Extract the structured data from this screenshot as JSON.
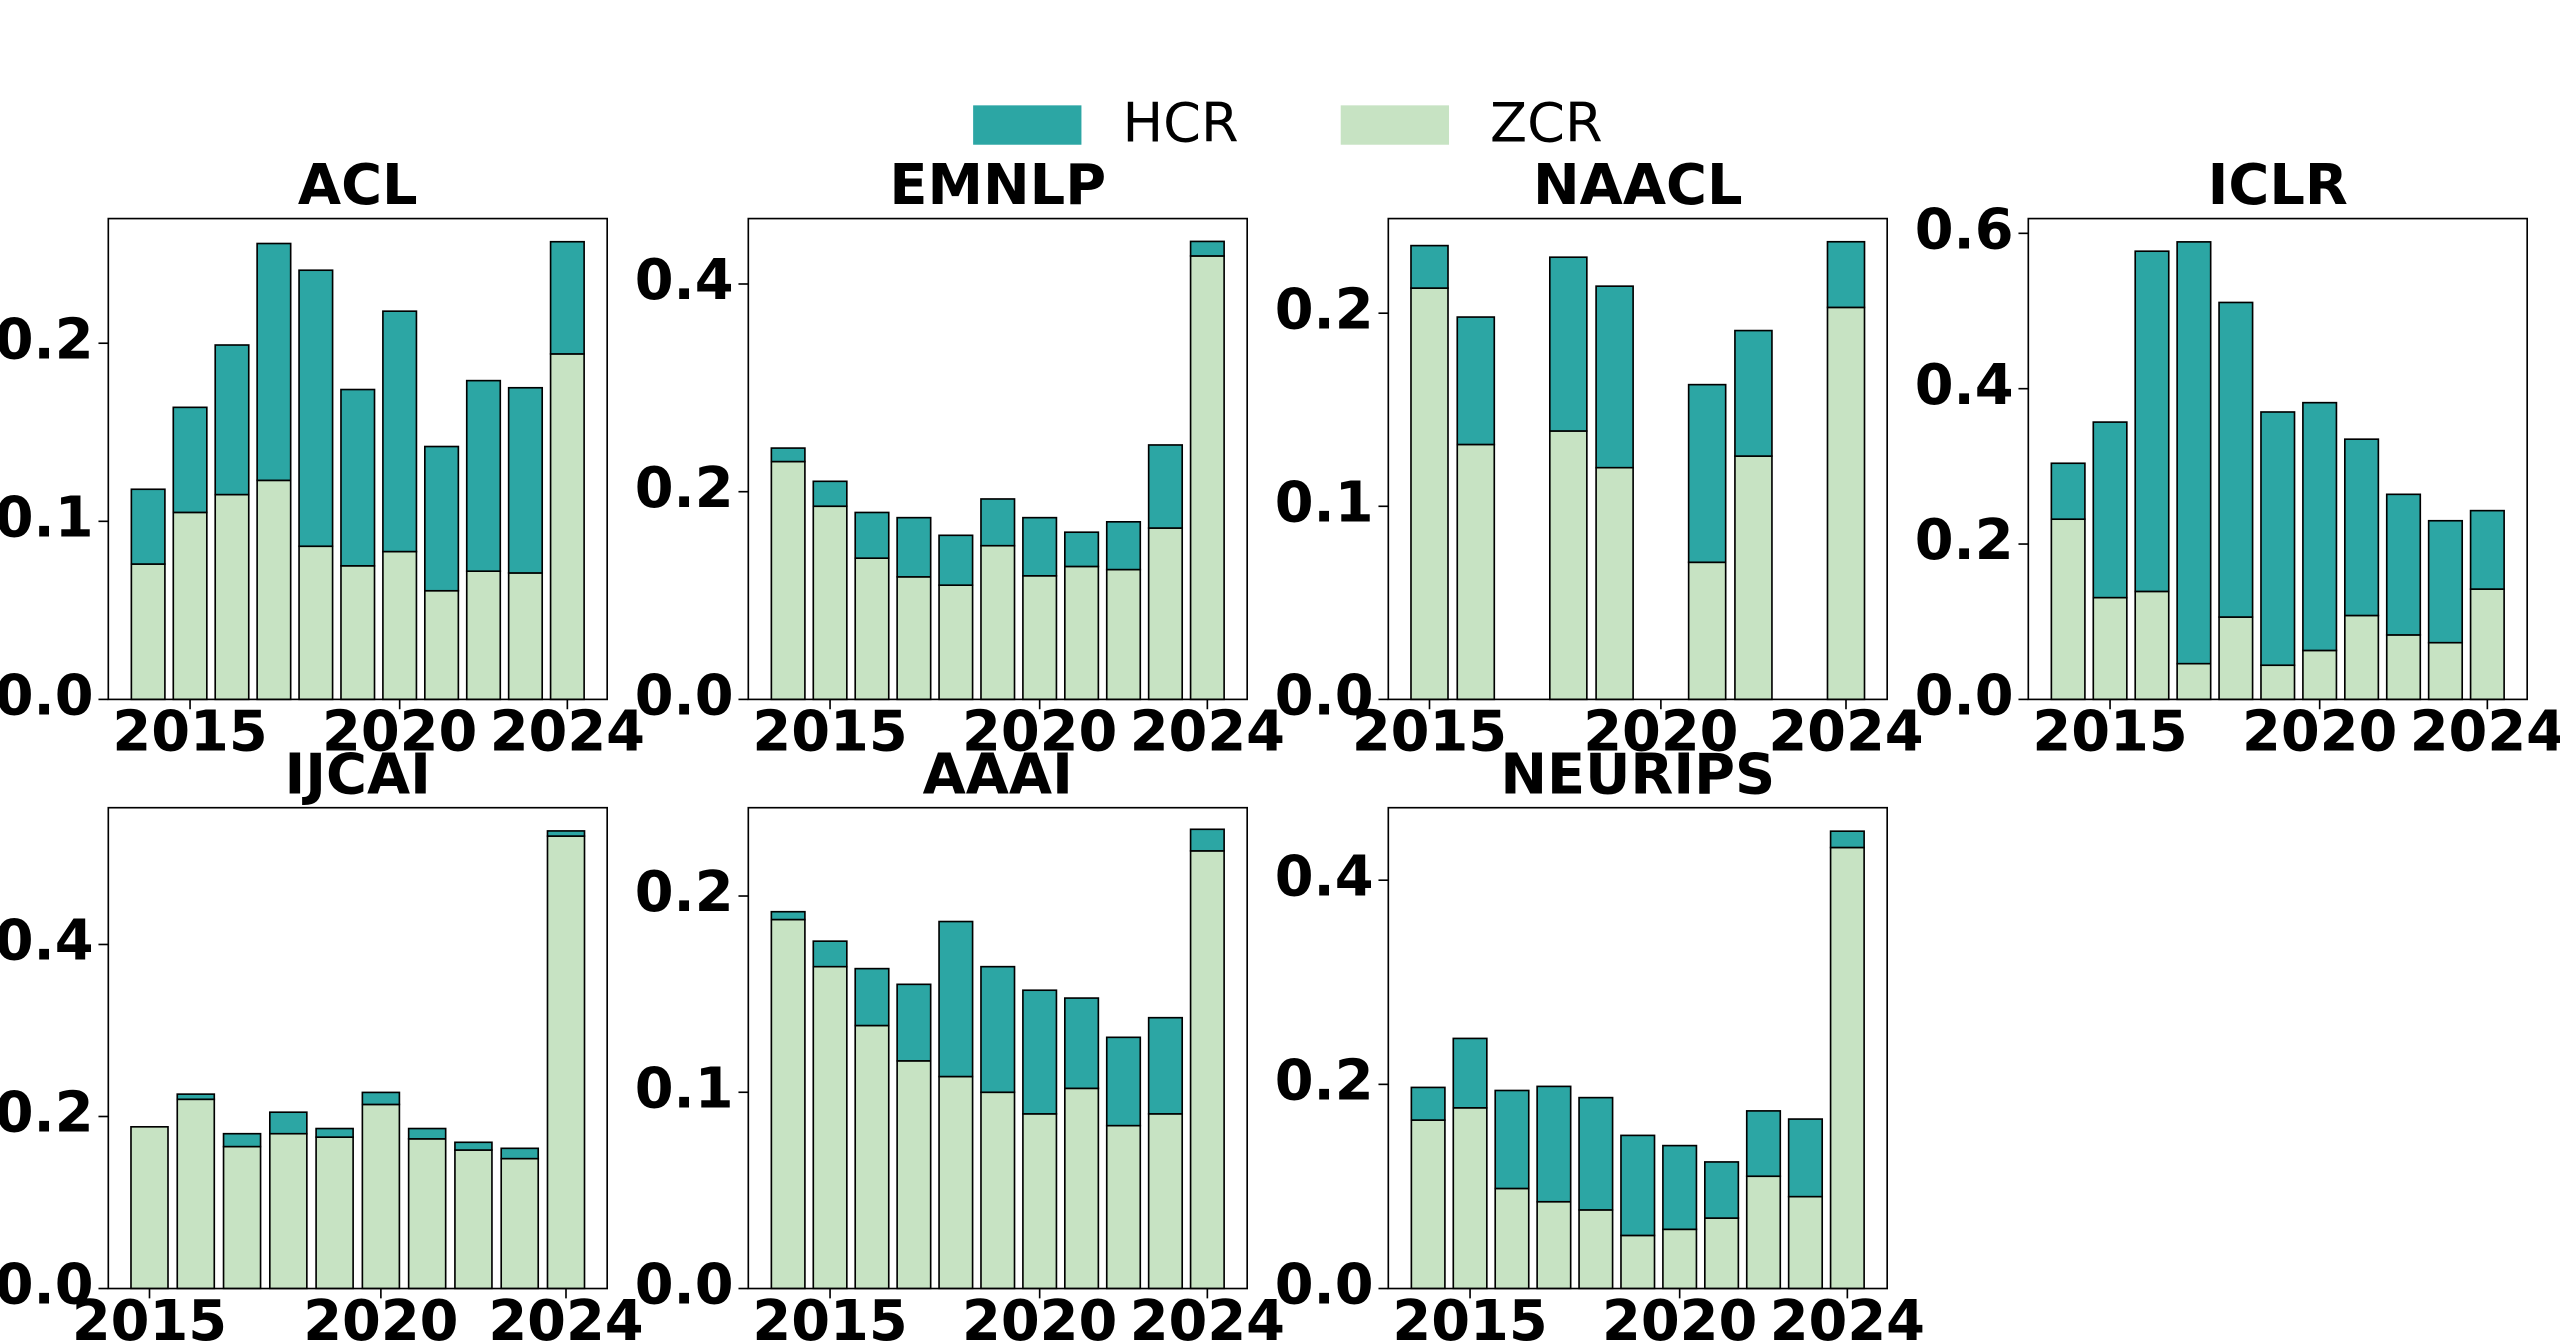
{
  "chart_data": [
    {
      "type": "bar",
      "stacked": true,
      "title": "ACL",
      "x": [
        2014,
        2015,
        2016,
        2017,
        2018,
        2019,
        2020,
        2021,
        2022,
        2023,
        2024
      ],
      "series": [
        {
          "name": "HCR",
          "color": "#2ca6a4",
          "values": [
            0.042,
            0.059,
            0.084,
            0.133,
            0.155,
            0.099,
            0.135,
            0.081,
            0.107,
            0.104,
            0.063
          ]
        },
        {
          "name": "ZCR",
          "color": "#c7e3c3",
          "values": [
            0.076,
            0.105,
            0.115,
            0.123,
            0.086,
            0.075,
            0.083,
            0.061,
            0.072,
            0.071,
            0.194
          ]
        }
      ],
      "xlim": [
        2013.05,
        2024.95
      ],
      "xticks": [
        2015,
        2020,
        2024
      ],
      "ylim": [
        0,
        0.27
      ],
      "yticks": [
        {
          "value": 0,
          "label": "0.0"
        },
        0.1,
        0.2
      ]
    },
    {
      "type": "bar",
      "stacked": true,
      "title": "EMNLP",
      "x": [
        2014,
        2015,
        2016,
        2017,
        2018,
        2019,
        2020,
        2021,
        2022,
        2023,
        2024
      ],
      "series": [
        {
          "name": "HCR",
          "color": "#2ca6a4",
          "values": [
            0.013,
            0.024,
            0.044,
            0.057,
            0.048,
            0.045,
            0.056,
            0.033,
            0.046,
            0.08,
            0.014
          ]
        },
        {
          "name": "ZCR",
          "color": "#c7e3c3",
          "values": [
            0.229,
            0.186,
            0.136,
            0.118,
            0.11,
            0.148,
            0.119,
            0.128,
            0.125,
            0.165,
            0.427
          ]
        }
      ],
      "xlim": [
        2013.05,
        2024.95
      ],
      "xticks": [
        2015,
        2020,
        2024
      ],
      "ylim": [
        0,
        0.463
      ],
      "yticks": [
        {
          "value": 0,
          "label": "0.0"
        },
        0.2,
        0.4
      ]
    },
    {
      "type": "bar",
      "stacked": true,
      "title": "NAACL",
      "x": [
        2015,
        2016,
        2018,
        2019,
        2021,
        2022,
        2024
      ],
      "series": [
        {
          "name": "HCR",
          "color": "#2ca6a4",
          "values": [
            0.022,
            0.066,
            0.09,
            0.094,
            0.092,
            0.065,
            0.034
          ]
        },
        {
          "name": "ZCR",
          "color": "#c7e3c3",
          "values": [
            0.213,
            0.132,
            0.139,
            0.12,
            0.071,
            0.126,
            0.203
          ]
        }
      ],
      "xlim": [
        2014.11,
        2024.89
      ],
      "xticks": [
        2015,
        2020,
        2024
      ],
      "ylim": [
        0,
        0.249
      ],
      "yticks": [
        {
          "value": 0,
          "label": "0.0"
        },
        0.1,
        0.2
      ]
    },
    {
      "type": "bar",
      "stacked": true,
      "title": "ICLR",
      "x": [
        2014,
        2015,
        2016,
        2017,
        2018,
        2019,
        2020,
        2021,
        2022,
        2023,
        2024
      ],
      "series": [
        {
          "name": "HCR",
          "color": "#2ca6a4",
          "values": [
            0.072,
            0.226,
            0.438,
            0.543,
            0.405,
            0.326,
            0.319,
            0.227,
            0.181,
            0.157,
            0.101
          ]
        },
        {
          "name": "ZCR",
          "color": "#c7e3c3",
          "values": [
            0.232,
            0.131,
            0.139,
            0.046,
            0.106,
            0.044,
            0.063,
            0.108,
            0.083,
            0.073,
            0.142
          ]
        }
      ],
      "xlim": [
        2013.05,
        2024.95
      ],
      "xticks": [
        2015,
        2020,
        2024
      ],
      "ylim": [
        0,
        0.619
      ],
      "yticks": [
        {
          "value": 0,
          "label": "0.0"
        },
        0.2,
        0.4,
        0.6
      ]
    },
    {
      "type": "bar",
      "stacked": true,
      "title": "IJCAI",
      "x": [
        2015,
        2016,
        2017,
        2018,
        2019,
        2020,
        2021,
        2022,
        2023,
        2024
      ],
      "series": [
        {
          "name": "HCR",
          "color": "#2ca6a4",
          "values": [
            0,
            0.006,
            0.015,
            0.025,
            0.01,
            0.014,
            0.012,
            0.009,
            0.012,
            0.006
          ]
        },
        {
          "name": "ZCR",
          "color": "#c7e3c3",
          "values": [
            0.188,
            0.22,
            0.165,
            0.18,
            0.176,
            0.214,
            0.174,
            0.161,
            0.151,
            0.526
          ]
        }
      ],
      "xlim": [
        2014.11,
        2024.89
      ],
      "xticks": [
        2015,
        2020,
        2024
      ],
      "ylim": [
        0,
        0.559
      ],
      "yticks": [
        {
          "value": 0,
          "label": "0.0"
        },
        0.2,
        0.4
      ]
    },
    {
      "type": "bar",
      "stacked": true,
      "title": "AAAI",
      "x": [
        2014,
        2015,
        2016,
        2017,
        2018,
        2019,
        2020,
        2021,
        2022,
        2023,
        2024
      ],
      "series": [
        {
          "name": "HCR",
          "color": "#2ca6a4",
          "values": [
            0.004,
            0.013,
            0.029,
            0.039,
            0.079,
            0.064,
            0.063,
            0.046,
            0.045,
            0.049,
            0.011
          ]
        },
        {
          "name": "ZCR",
          "color": "#c7e3c3",
          "values": [
            0.188,
            0.164,
            0.134,
            0.116,
            0.108,
            0.1,
            0.089,
            0.102,
            0.083,
            0.089,
            0.223
          ]
        }
      ],
      "xlim": [
        2013.05,
        2024.95
      ],
      "xticks": [
        2015,
        2020,
        2024
      ],
      "ylim": [
        0,
        0.245
      ],
      "yticks": [
        {
          "value": 0,
          "label": "0.0"
        },
        0.1,
        0.2
      ]
    },
    {
      "type": "bar",
      "stacked": true,
      "title": "NEURIPS",
      "x": [
        2014,
        2015,
        2016,
        2017,
        2018,
        2019,
        2020,
        2021,
        2022,
        2023,
        2024
      ],
      "series": [
        {
          "name": "HCR",
          "color": "#2ca6a4",
          "values": [
            0.032,
            0.068,
            0.096,
            0.113,
            0.11,
            0.098,
            0.082,
            0.055,
            0.064,
            0.076,
            0.016
          ]
        },
        {
          "name": "ZCR",
          "color": "#c7e3c3",
          "values": [
            0.165,
            0.177,
            0.098,
            0.085,
            0.077,
            0.052,
            0.058,
            0.069,
            0.11,
            0.09,
            0.432
          ]
        }
      ],
      "xlim": [
        2013.05,
        2024.95
      ],
      "xticks": [
        2015,
        2020,
        2024
      ],
      "ylim": [
        0,
        0.471
      ],
      "yticks": [
        {
          "value": 0,
          "label": "0.0"
        },
        0.2,
        0.4
      ]
    }
  ]
}
